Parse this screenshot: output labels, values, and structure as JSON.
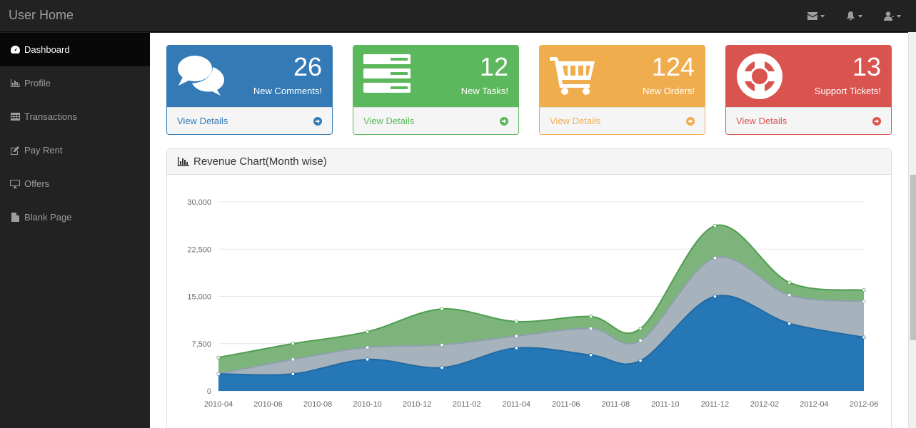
{
  "app": {
    "title": "User Home"
  },
  "topnav": {
    "items": [
      {
        "icon": "envelope-icon"
      },
      {
        "icon": "bell-icon"
      },
      {
        "icon": "user-icon"
      }
    ]
  },
  "sidebar": {
    "items": [
      {
        "label": "Dashboard",
        "icon": "dashboard-icon",
        "active": true
      },
      {
        "label": "Profile",
        "icon": "bar-chart-icon"
      },
      {
        "label": "Transactions",
        "icon": "table-icon"
      },
      {
        "label": "Pay Rent",
        "icon": "edit-icon"
      },
      {
        "label": "Offers",
        "icon": "desktop-icon"
      },
      {
        "label": "Blank Page",
        "icon": "file-icon"
      }
    ]
  },
  "cards": [
    {
      "count": "26",
      "label": "New Comments!",
      "link": "View Details",
      "color": "#337ab7",
      "icon": "comments-icon"
    },
    {
      "count": "12",
      "label": "New Tasks!",
      "link": "View Details",
      "color": "#5cb85c",
      "icon": "tasks-icon"
    },
    {
      "count": "124",
      "label": "New Orders!",
      "link": "View Details",
      "color": "#f0ad4e",
      "icon": "shopping-cart-icon"
    },
    {
      "count": "13",
      "label": "Support Tickets!",
      "link": "View Details",
      "color": "#d9534f",
      "icon": "life-ring-icon"
    }
  ],
  "panel": {
    "title": "Revenue Chart(Month wise)"
  },
  "chart_data": {
    "type": "area",
    "title": "Revenue Chart(Month wise)",
    "x": [
      "2010-04",
      "2010-07",
      "2010-10",
      "2011-01",
      "2011-04",
      "2011-07",
      "2011-09",
      "2011-12",
      "2012-03",
      "2012-06"
    ],
    "x_tick_labels": [
      "2010-04",
      "2010-06",
      "2010-08",
      "2010-10",
      "2010-12",
      "2011-02",
      "2011-04",
      "2011-06",
      "2011-08",
      "2011-10",
      "2011-12",
      "2012-02",
      "2012-04",
      "2012-06"
    ],
    "y_tick_labels": [
      "0",
      "7,500",
      "15,000",
      "22,500",
      "30,000"
    ],
    "ylim": [
      0,
      30000
    ],
    "stacked": true,
    "series": [
      {
        "color": "#2577b5",
        "values": [
          2700,
          2700,
          5000,
          3700,
          6800,
          5700,
          4800,
          15000,
          10700,
          8500
        ]
      },
      {
        "color": "#a7b3bc",
        "values": [
          0,
          2300,
          1900,
          3600,
          1900,
          4200,
          3200,
          6100,
          4500,
          5700
        ]
      },
      {
        "color": "#7cb47c",
        "values": [
          2600,
          2500,
          2500,
          5700,
          2300,
          1900,
          1900,
          5100,
          2000,
          1800
        ]
      }
    ],
    "grid": true
  }
}
